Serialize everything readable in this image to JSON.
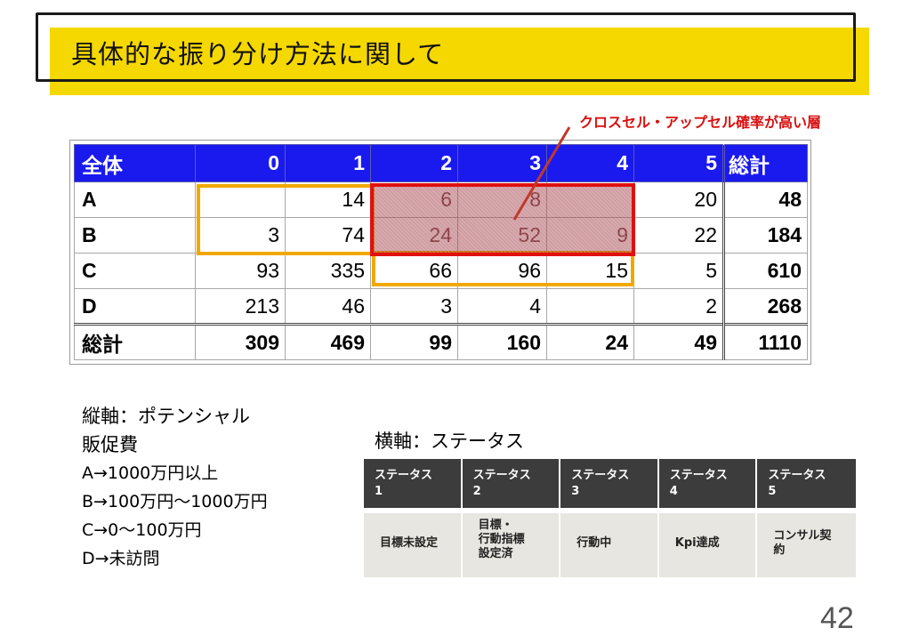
{
  "title": "具体的な振り分け方法に関して",
  "callout": "クロスセル・アップセル確率が高い層",
  "matrix": {
    "header": [
      "全体",
      "0",
      "1",
      "2",
      "3",
      "4",
      "5",
      "総計"
    ],
    "rows": [
      [
        "A",
        "",
        "14",
        "6",
        "8",
        "",
        "20",
        "48"
      ],
      [
        "B",
        "3",
        "74",
        "24",
        "52",
        "9",
        "22",
        "184"
      ],
      [
        "C",
        "93",
        "335",
        "66",
        "96",
        "15",
        "5",
        "610"
      ],
      [
        "D",
        "213",
        "46",
        "3",
        "4",
        "",
        "2",
        "268"
      ],
      [
        "総計",
        "309",
        "469",
        "99",
        "160",
        "24",
        "49",
        "1110"
      ]
    ]
  },
  "vertical_axis": {
    "heading": "縦軸：ポテンシャル",
    "subheading": "販促費",
    "items": [
      "A→1000万円以上",
      "B→100万円～1000万円",
      "C→0～100万円",
      "D→未訪問"
    ]
  },
  "horizontal_axis": {
    "heading": "横軸：ステータス",
    "headers": [
      {
        "line1": "ステータス",
        "line2": "1"
      },
      {
        "line1": "ステータス",
        "line2": "2"
      },
      {
        "line1": "ステータス",
        "line2": "3"
      },
      {
        "line1": "ステータス",
        "line2": "4"
      },
      {
        "line1": "ステータス",
        "line2": "5"
      }
    ],
    "values": [
      {
        "line1": "目標未設定",
        "line2": "",
        "line3": ""
      },
      {
        "line1": "目標・",
        "line2": "行動指標",
        "line3": "設定済"
      },
      {
        "line1": "行動中",
        "line2": "",
        "line3": ""
      },
      {
        "line1": "Kpi達成",
        "line2": "",
        "line3": ""
      },
      {
        "line1": "コンサル契",
        "line2": "約",
        "line3": ""
      }
    ]
  },
  "page_number": "42",
  "colors": {
    "banner_yellow": "#f5d800",
    "table_header_blue": "#1a1aee",
    "highlight_orange": "#f0a800",
    "highlight_red": "#e01010",
    "callout_red": "#d81010"
  }
}
